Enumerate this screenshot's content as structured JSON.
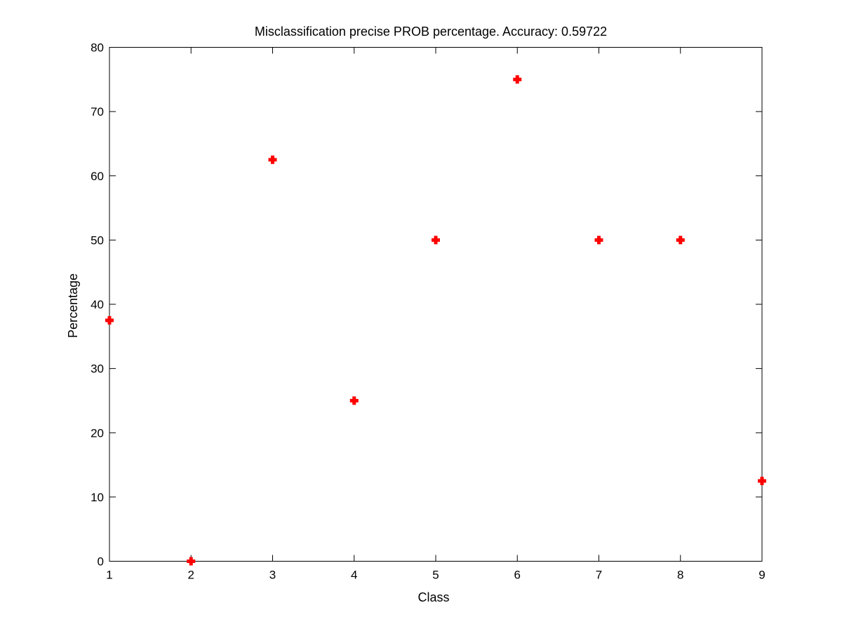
{
  "chart_data": {
    "type": "scatter",
    "title": "Misclassification precise PROB percentage. Accuracy: 0.59722",
    "xlabel": "Class",
    "ylabel": "Percentage",
    "xlim": [
      1,
      9
    ],
    "ylim": [
      0,
      80
    ],
    "xticks": [
      1,
      2,
      3,
      4,
      5,
      6,
      7,
      8,
      9
    ],
    "yticks": [
      0,
      10,
      20,
      30,
      40,
      50,
      60,
      70,
      80
    ],
    "grid": false,
    "legend": "none",
    "marker": "plus",
    "series": [
      {
        "color": "#ff0000",
        "x": [
          1,
          2,
          3,
          4,
          5,
          6,
          7,
          8,
          9
        ],
        "y": [
          37.5,
          0,
          62.5,
          25,
          50,
          75,
          50,
          50,
          12.5
        ]
      }
    ]
  }
}
